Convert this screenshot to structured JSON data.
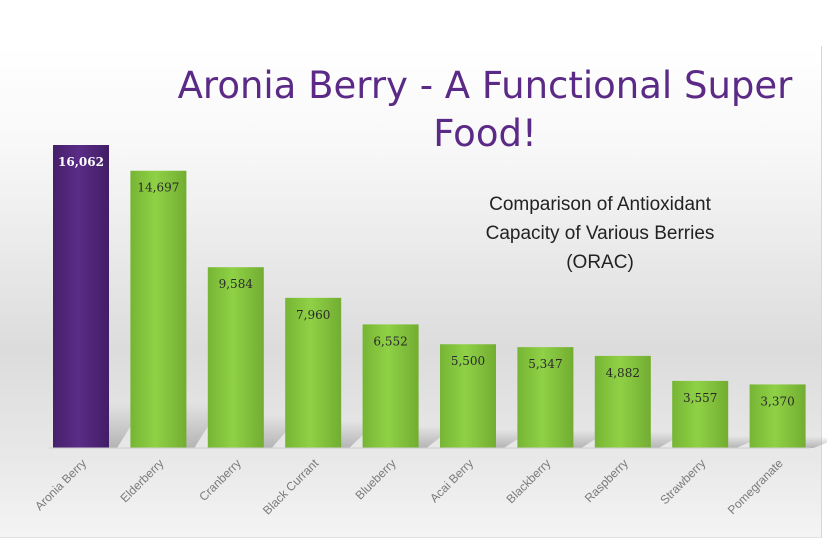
{
  "page": {
    "title": "Aronia Berry - A Functional Super Food!",
    "subtitle": "Comparison of Antioxidant Capacity of Various Berries (ORAC)"
  },
  "colors": {
    "highlight_bar": "#52277a",
    "bar": "#86c640",
    "title": "#5b2a86",
    "value_label_on_highlight": "#ffffff",
    "value_label": "#2a2a2a",
    "category_label": "#7a7a7a"
  },
  "chart_data": {
    "type": "bar",
    "categories": [
      "Aronia Berry",
      "Elderberry",
      "Cranberry",
      "Black Currant",
      "Blueberry",
      "Acai Berry",
      "Blackberry",
      "Raspberry",
      "Strawberry",
      "Pomegranate"
    ],
    "values": [
      16062,
      14697,
      9584,
      7960,
      6552,
      5500,
      5347,
      4882,
      3557,
      3370
    ],
    "value_labels": [
      "16,062",
      "14,697",
      "9,584",
      "7,960",
      "6,552",
      "5,500",
      "5,347",
      "4,882",
      "3,557",
      "3,370"
    ],
    "highlighted_category": "Aronia Berry",
    "ylim": [
      0,
      16062
    ],
    "grid": false,
    "legend": "none"
  }
}
